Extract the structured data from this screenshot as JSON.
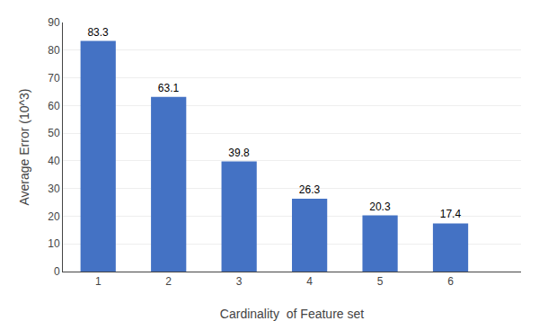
{
  "chart_data": {
    "type": "bar",
    "x": [
      1,
      2,
      3,
      4,
      5,
      6
    ],
    "values": [
      83.3,
      63.1,
      39.8,
      26.3,
      20.3,
      17.4
    ],
    "color": "#4472C4",
    "xlabel": "Cardinality  of Feature set",
    "ylabel": "Average Error (10^3)",
    "xlim": [
      0.5,
      7.0
    ],
    "xticks": [
      1,
      2,
      3,
      4,
      5,
      6
    ],
    "ylim": [
      0,
      90
    ],
    "yticks": [
      0,
      10,
      20,
      30,
      40,
      50,
      60,
      70,
      80,
      90
    ],
    "grid": true,
    "data_labels": true
  }
}
